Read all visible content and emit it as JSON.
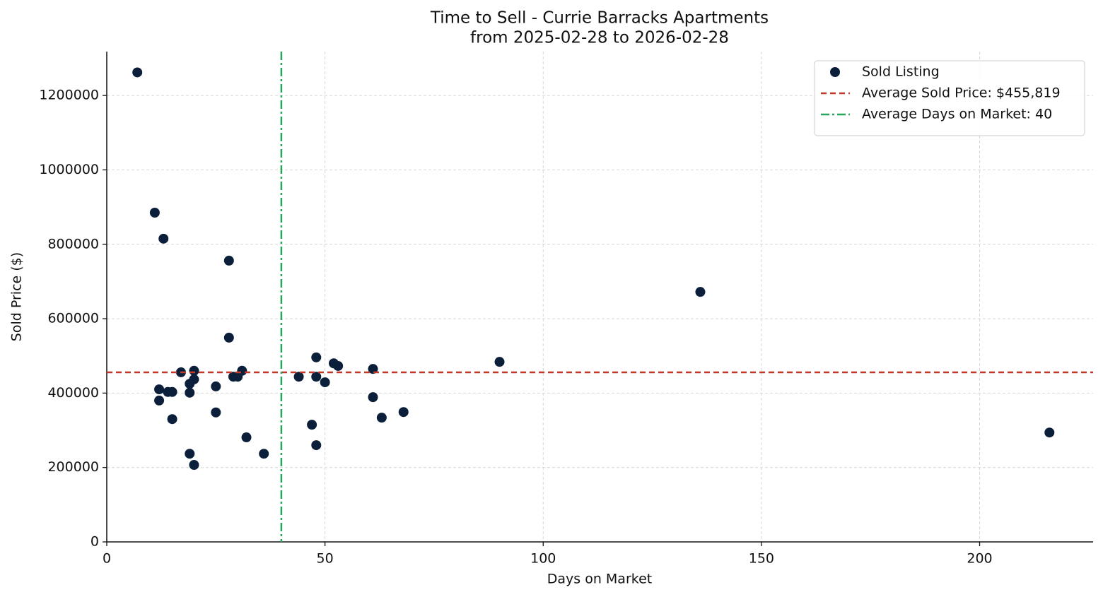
{
  "chart_data": {
    "type": "scatter",
    "title": "Time to Sell - Currie Barracks Apartments",
    "subtitle": "from 2025-02-28 to 2026-02-28",
    "x_label": "Days on Market",
    "y_label": "Sold Price ($)",
    "xlim": [
      0,
      226
    ],
    "ylim": [
      0,
      1318000
    ],
    "xticks": [
      0,
      50,
      100,
      150,
      200
    ],
    "yticks": [
      0,
      200000,
      400000,
      600000,
      800000,
      1000000,
      1200000
    ],
    "grid": true,
    "legend": "upper right",
    "series": [
      {
        "name": "Sold Listing",
        "color": "#0b1f3a",
        "x": [
          7,
          11,
          13,
          28,
          136,
          28,
          48,
          90,
          52,
          53,
          61,
          31,
          20,
          17,
          20,
          19,
          29,
          30,
          44,
          48,
          50,
          25,
          12,
          14,
          15,
          19,
          61,
          12,
          25,
          68,
          63,
          15,
          47,
          216,
          32,
          48,
          19,
          36,
          20
        ],
        "values": [
          1262000,
          885000,
          815000,
          756000,
          672000,
          549000,
          496000,
          484000,
          480000,
          473000,
          465000,
          460000,
          460000,
          456000,
          437000,
          425000,
          444000,
          444000,
          444000,
          444000,
          429000,
          418000,
          410000,
          403000,
          403000,
          401000,
          389000,
          380000,
          348000,
          349000,
          334000,
          330000,
          315000,
          294000,
          281000,
          260000,
          237000,
          237000,
          207000
        ]
      }
    ],
    "hlines": [
      {
        "name": "Average Sold Price: $455,819",
        "value": 455819,
        "color": "#c0392b",
        "style": "dashed"
      }
    ],
    "vlines": [
      {
        "name": "Average Days on Market: 40",
        "value": 40,
        "color": "#27a55f",
        "style": "dashdot"
      }
    ]
  }
}
